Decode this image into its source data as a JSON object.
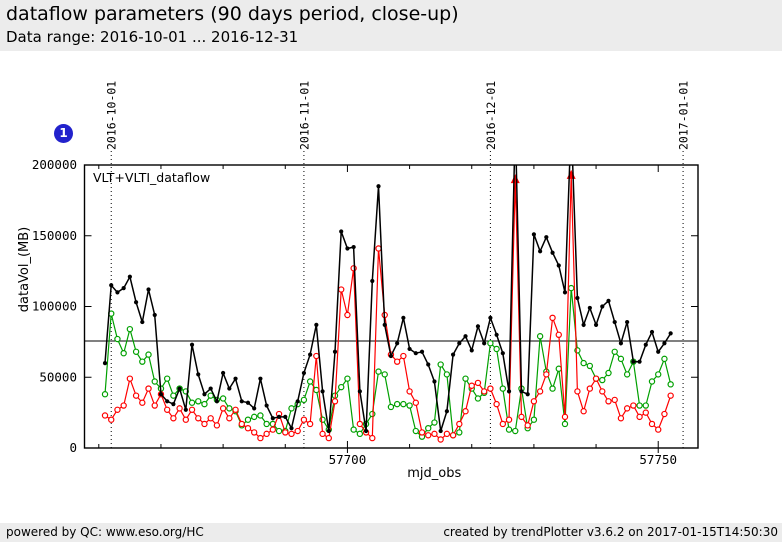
{
  "header": {
    "title": "dataflow parameters (90 days period, close-up)",
    "subtitle": "Data range: 2016-10-01 ... 2016-12-31",
    "bg": "#ececec"
  },
  "badge": {
    "label": "1",
    "color": "#2222cc"
  },
  "footer": {
    "left": "powered by QC: www.eso.org/HC",
    "right": "created by trendPlotter v3.6.2 on 2017-01-15T14:50:30",
    "bg": "#ececec"
  },
  "chart_data": {
    "type": "line",
    "legend": "VLT+VLTI_dataflow",
    "xlabel": "mjd_obs",
    "ylabel": "dataVol_(MB)",
    "xlim": [
      57657.7,
      57756.4
    ],
    "ylim": [
      0,
      200000
    ],
    "x_major_ticks": [
      57700,
      57750
    ],
    "x_minor_tick_step": 10,
    "y_ticks": [
      0,
      50000,
      100000,
      150000,
      200000
    ],
    "avg_line": 75600,
    "date_lines": [
      {
        "mjd": 57662,
        "label": "2016-10-01"
      },
      {
        "mjd": 57693,
        "label": "2016-11-01"
      },
      {
        "mjd": 57723,
        "label": "2016-12-01"
      },
      {
        "mjd": 57754,
        "label": "2017-01-01"
      }
    ],
    "x_start_mjd": 57661,
    "series": [
      {
        "name": "total-dataflow",
        "color": "#000000",
        "marker": "dot",
        "values": [
          60000,
          115000,
          110000,
          113000,
          121000,
          103000,
          89000,
          112000,
          94000,
          38000,
          33000,
          31000,
          42000,
          27000,
          73000,
          52000,
          38000,
          42000,
          33000,
          53000,
          42000,
          49000,
          33000,
          32000,
          28000,
          49000,
          30000,
          21000,
          22000,
          22000,
          14000,
          33000,
          53000,
          66000,
          87000,
          40000,
          12000,
          68000,
          153000,
          141000,
          142000,
          40000,
          12000,
          118000,
          185000,
          87000,
          65000,
          74000,
          92000,
          70000,
          67000,
          68000,
          59000,
          47000,
          12000,
          26000,
          66000,
          74000,
          79000,
          69000,
          86000,
          74000,
          92000,
          80000,
          67000,
          40000,
          230000,
          40000,
          38000,
          151000,
          139000,
          149000,
          138000,
          129000,
          110000,
          230000,
          106000,
          87000,
          99000,
          87000,
          100000,
          104000,
          89000,
          74000,
          89000,
          61000,
          61000,
          73000,
          82000,
          68000,
          74000,
          81000
        ]
      },
      {
        "name": "dataflow-red",
        "color": "#ff0000",
        "marker": "circle",
        "values": [
          23000,
          20000,
          27000,
          30000,
          49000,
          37000,
          32000,
          42000,
          30000,
          38000,
          27000,
          21000,
          28000,
          20000,
          27000,
          21000,
          17000,
          21000,
          16000,
          28000,
          21000,
          27000,
          17000,
          14000,
          11000,
          7000,
          10000,
          13000,
          24000,
          11000,
          10000,
          12000,
          20000,
          17000,
          65000,
          10000,
          7000,
          33000,
          112000,
          94000,
          127000,
          17000,
          11000,
          7000,
          141000,
          94000,
          66000,
          61000,
          65000,
          40000,
          32000,
          11000,
          9000,
          10000,
          6000,
          10000,
          9000,
          17000,
          26000,
          44000,
          46000,
          40000,
          42000,
          31000,
          17000,
          20000,
          190000,
          22000,
          16000,
          33000,
          40000,
          52000,
          92000,
          80000,
          22000,
          193000,
          40000,
          26000,
          42000,
          49000,
          40000,
          33000,
          34000,
          21000,
          28000,
          30000,
          22000,
          25000,
          17000,
          13000,
          24000,
          37000
        ]
      },
      {
        "name": "dataflow-green",
        "color": "#00a000",
        "marker": "circle",
        "values": [
          38000,
          95000,
          77000,
          67000,
          84000,
          68000,
          61000,
          66000,
          47000,
          42000,
          49000,
          37000,
          42000,
          40000,
          32000,
          33000,
          31000,
          37000,
          34000,
          35000,
          28000,
          26000,
          16000,
          20000,
          22000,
          23000,
          17000,
          17000,
          12000,
          12000,
          28000,
          31000,
          34000,
          47000,
          41000,
          20000,
          13000,
          37000,
          43000,
          49000,
          13000,
          10000,
          17000,
          24000,
          54000,
          52000,
          29000,
          31000,
          31000,
          30000,
          12000,
          8000,
          14000,
          18000,
          59000,
          52000,
          9000,
          11000,
          49000,
          42000,
          35000,
          39000,
          74000,
          70000,
          42000,
          13000,
          12000,
          42000,
          14000,
          20000,
          79000,
          54000,
          42000,
          56000,
          17000,
          113000,
          69000,
          60000,
          58000,
          49000,
          48000,
          53000,
          68000,
          63000,
          52000,
          61000,
          30000,
          30000,
          47000,
          52000,
          63000,
          45000
        ]
      }
    ]
  }
}
